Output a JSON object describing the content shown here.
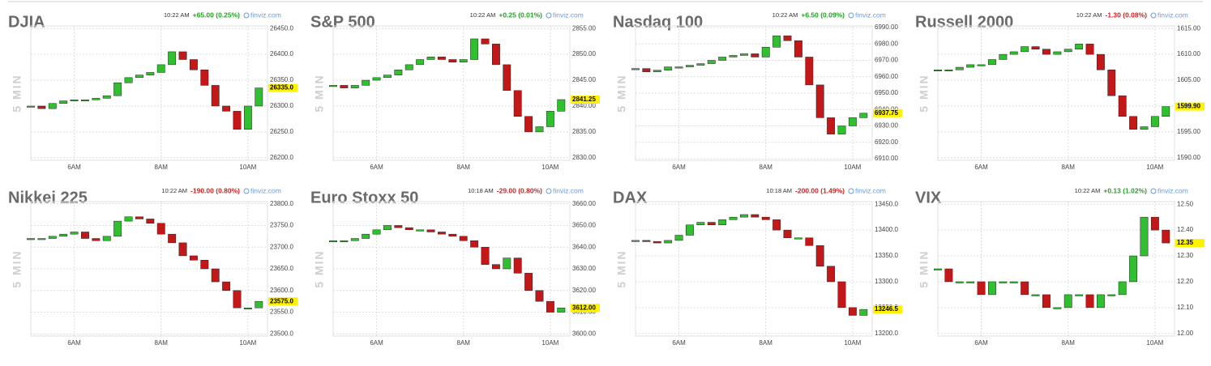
{
  "charts": [
    {
      "type": "candlestick",
      "title": "DJIA",
      "time": "10:22 AM",
      "change": "+65.00 (0.25%)",
      "change_color": "#2a9d2a",
      "source": "finviz.com",
      "ylabel": "5 MIN",
      "x": [
        5,
        5.25,
        5.5,
        5.75,
        6,
        6.25,
        6.5,
        6.75,
        7,
        7.25,
        7.5,
        7.75,
        8,
        8.25,
        8.5,
        8.75,
        9,
        9.25,
        9.5,
        9.75,
        10,
        10.25
      ],
      "values": [
        26300,
        26295,
        26305,
        26310,
        26312,
        26312,
        26315,
        26320,
        26345,
        26355,
        26360,
        26365,
        26380,
        26405,
        26390,
        26370,
        26340,
        26300,
        26290,
        26255,
        26300,
        26335
      ],
      "xlim": [
        5,
        10.45
      ],
      "xticks": [
        {
          "value": 6,
          "label": "6AM"
        },
        {
          "value": 8,
          "label": "8AM"
        },
        {
          "value": 10,
          "label": "10AM"
        }
      ],
      "ylim": [
        26195,
        26455
      ],
      "yticks": [
        {
          "value": 26200,
          "label": "26200.0"
        },
        {
          "value": 26250,
          "label": "26250.0"
        },
        {
          "value": 26300,
          "label": "26300.0"
        },
        {
          "value": 26350,
          "label": "26350.0"
        },
        {
          "value": 26400,
          "label": "26400.0"
        },
        {
          "value": 26450,
          "label": "26450.0"
        }
      ],
      "last_price": {
        "value": 26335,
        "label": "26335.0"
      },
      "grid": true
    },
    {
      "type": "candlestick",
      "title": "S&P 500",
      "time": "10:22 AM",
      "change": "+0.25 (0.01%)",
      "change_color": "#2a9d2a",
      "source": "finviz.com",
      "ylabel": "5 MIN",
      "x": [
        5,
        5.25,
        5.5,
        5.75,
        6,
        6.25,
        6.5,
        6.75,
        7,
        7.25,
        7.5,
        7.75,
        8,
        8.25,
        8.5,
        8.75,
        9,
        9.25,
        9.5,
        9.75,
        10,
        10.25
      ],
      "values": [
        2844,
        2843.5,
        2844,
        2845,
        2845.5,
        2846,
        2847,
        2848,
        2849,
        2849.5,
        2849,
        2848.5,
        2849,
        2853,
        2852,
        2848,
        2843,
        2838,
        2835,
        2836,
        2839,
        2841.25
      ],
      "xlim": [
        5,
        10.45
      ],
      "xticks": [
        {
          "value": 6,
          "label": "6AM"
        },
        {
          "value": 8,
          "label": "8AM"
        },
        {
          "value": 10,
          "label": "10AM"
        }
      ],
      "ylim": [
        2829.5,
        2855.5
      ],
      "yticks": [
        {
          "value": 2830,
          "label": "2830.00"
        },
        {
          "value": 2835,
          "label": "2835.00"
        },
        {
          "value": 2840,
          "label": "2840.00"
        },
        {
          "value": 2845,
          "label": "2845.00"
        },
        {
          "value": 2850,
          "label": "2850.00"
        },
        {
          "value": 2855,
          "label": "2855.00"
        }
      ],
      "last_price": {
        "value": 2841.25,
        "label": "2841.25"
      },
      "grid": true
    },
    {
      "type": "candlestick",
      "title": "Nasdaq 100",
      "time": "10:22 AM",
      "change": "+6.50 (0.09%)",
      "change_color": "#2a9d2a",
      "source": "finviz.com",
      "ylabel": "5 MIN",
      "x": [
        5,
        5.25,
        5.5,
        5.75,
        6,
        6.25,
        6.5,
        6.75,
        7,
        7.25,
        7.5,
        7.75,
        8,
        8.25,
        8.5,
        8.75,
        9,
        9.25,
        9.5,
        9.75,
        10,
        10.25
      ],
      "values": [
        6965,
        6963,
        6964,
        6966,
        6966,
        6967,
        6968,
        6970,
        6972,
        6973,
        6974,
        6972,
        6978,
        6985,
        6982,
        6972,
        6955,
        6935,
        6925,
        6930,
        6935,
        6937.75
      ],
      "xlim": [
        5,
        10.45
      ],
      "xticks": [
        {
          "value": 6,
          "label": "6AM"
        },
        {
          "value": 8,
          "label": "8AM"
        },
        {
          "value": 10,
          "label": "10AM"
        }
      ],
      "ylim": [
        6909,
        6991
      ],
      "yticks": [
        {
          "value": 6910,
          "label": "6910.00"
        },
        {
          "value": 6920,
          "label": "6920.00"
        },
        {
          "value": 6930,
          "label": "6930.00"
        },
        {
          "value": 6940,
          "label": "6940.00"
        },
        {
          "value": 6950,
          "label": "6950.00"
        },
        {
          "value": 6960,
          "label": "6960.00"
        },
        {
          "value": 6970,
          "label": "6970.00"
        },
        {
          "value": 6980,
          "label": "6980.00"
        },
        {
          "value": 6990,
          "label": "6990.00"
        }
      ],
      "last_price": {
        "value": 6937.75,
        "label": "6937.75"
      },
      "grid": true
    },
    {
      "type": "candlestick",
      "title": "Russell 2000",
      "time": "10:22 AM",
      "change": "-1.30 (0.08%)",
      "change_color": "#d62020",
      "source": "finviz.com",
      "ylabel": "5 MIN",
      "x": [
        5,
        5.25,
        5.5,
        5.75,
        6,
        6.25,
        6.5,
        6.75,
        7,
        7.25,
        7.5,
        7.75,
        8,
        8.25,
        8.5,
        8.75,
        9,
        9.25,
        9.5,
        9.75,
        10,
        10.25
      ],
      "values": [
        1607,
        1607,
        1607.5,
        1608,
        1608,
        1609,
        1610,
        1610.5,
        1611.5,
        1611,
        1610,
        1610.5,
        1611,
        1612,
        1610,
        1607,
        1602,
        1598,
        1595.5,
        1596,
        1598,
        1599.9
      ],
      "xlim": [
        5,
        10.45
      ],
      "xticks": [
        {
          "value": 6,
          "label": "6AM"
        },
        {
          "value": 8,
          "label": "8AM"
        },
        {
          "value": 10,
          "label": "10AM"
        }
      ],
      "ylim": [
        1589.5,
        1615.5
      ],
      "yticks": [
        {
          "value": 1590,
          "label": "1590.00"
        },
        {
          "value": 1595,
          "label": "1595.00"
        },
        {
          "value": 1600,
          "label": "1600.00"
        },
        {
          "value": 1605,
          "label": "1605.00"
        },
        {
          "value": 1610,
          "label": "1610.00"
        },
        {
          "value": 1615,
          "label": "1615.00"
        }
      ],
      "last_price": {
        "value": 1599.9,
        "label": "1599.90"
      },
      "grid": true
    },
    {
      "type": "candlestick",
      "title": "Nikkei 225",
      "time": "10:22 AM",
      "change": "-190.00 (0.80%)",
      "change_color": "#d62020",
      "source": "finviz.com",
      "ylabel": "5 MIN",
      "x": [
        5,
        5.25,
        5.5,
        5.75,
        6,
        6.25,
        6.5,
        6.75,
        7,
        7.25,
        7.5,
        7.75,
        8,
        8.25,
        8.5,
        8.75,
        9,
        9.25,
        9.5,
        9.75,
        10,
        10.25
      ],
      "values": [
        23720,
        23720,
        23725,
        23730,
        23735,
        23720,
        23715,
        23725,
        23760,
        23770,
        23765,
        23755,
        23730,
        23710,
        23680,
        23670,
        23650,
        23620,
        23600,
        23560,
        23560,
        23575
      ],
      "xlim": [
        5,
        10.45
      ],
      "xticks": [
        {
          "value": 6,
          "label": "6AM"
        },
        {
          "value": 8,
          "label": "8AM"
        },
        {
          "value": 10,
          "label": "10AM"
        }
      ],
      "ylim": [
        23495,
        23805
      ],
      "yticks": [
        {
          "value": 23500,
          "label": "23500.0"
        },
        {
          "value": 23550,
          "label": "23550.0"
        },
        {
          "value": 23600,
          "label": "23600.0"
        },
        {
          "value": 23650,
          "label": "23650.0"
        },
        {
          "value": 23700,
          "label": "23700.0"
        },
        {
          "value": 23750,
          "label": "23750.0"
        },
        {
          "value": 23800,
          "label": "23800.0"
        }
      ],
      "last_price": {
        "value": 23575,
        "label": "23575.0"
      },
      "grid": true
    },
    {
      "type": "candlestick",
      "title": "Euro Stoxx 50",
      "time": "10:18 AM",
      "change": "-29.00 (0.80%)",
      "change_color": "#d62020",
      "source": "finviz.com",
      "ylabel": "5 MIN",
      "x": [
        5,
        5.25,
        5.5,
        5.75,
        6,
        6.25,
        6.5,
        6.75,
        7,
        7.25,
        7.5,
        7.75,
        8,
        8.25,
        8.5,
        8.75,
        9,
        9.25,
        9.5,
        9.75,
        10,
        10.25
      ],
      "values": [
        3643,
        3643,
        3644,
        3646,
        3648,
        3650,
        3649,
        3648,
        3648,
        3647,
        3646,
        3645,
        3643,
        3640,
        3632,
        3630,
        3635,
        3628,
        3620,
        3615,
        3610,
        3612
      ],
      "xlim": [
        5,
        10.45
      ],
      "xticks": [
        {
          "value": 6,
          "label": "6AM"
        },
        {
          "value": 8,
          "label": "8AM"
        },
        {
          "value": 10,
          "label": "10AM"
        }
      ],
      "ylim": [
        3599,
        3661
      ],
      "yticks": [
        {
          "value": 3600,
          "label": "3600.00"
        },
        {
          "value": 3610,
          "label": "3610.00"
        },
        {
          "value": 3620,
          "label": "3620.00"
        },
        {
          "value": 3630,
          "label": "3630.00"
        },
        {
          "value": 3640,
          "label": "3640.00"
        },
        {
          "value": 3650,
          "label": "3650.00"
        },
        {
          "value": 3660,
          "label": "3660.00"
        }
      ],
      "last_price": {
        "value": 3612,
        "label": "3612.00"
      },
      "grid": true
    },
    {
      "type": "candlestick",
      "title": "DAX",
      "time": "10:18 AM",
      "change": "-200.00 (1.49%)",
      "change_color": "#d62020",
      "source": "finviz.com",
      "ylabel": "5 MIN",
      "x": [
        5,
        5.25,
        5.5,
        5.75,
        6,
        6.25,
        6.5,
        6.75,
        7,
        7.25,
        7.5,
        7.75,
        8,
        8.25,
        8.5,
        8.75,
        9,
        9.25,
        9.5,
        9.75,
        10,
        10.25
      ],
      "values": [
        13380,
        13378,
        13375,
        13380,
        13390,
        13410,
        13415,
        13410,
        13420,
        13425,
        13430,
        13425,
        13420,
        13400,
        13385,
        13385,
        13370,
        13330,
        13300,
        13250,
        13235,
        13246.5
      ],
      "xlim": [
        5,
        10.45
      ],
      "xticks": [
        {
          "value": 6,
          "label": "6AM"
        },
        {
          "value": 8,
          "label": "8AM"
        },
        {
          "value": 10,
          "label": "10AM"
        }
      ],
      "ylim": [
        13195,
        13455
      ],
      "yticks": [
        {
          "value": 13200,
          "label": "13200.0"
        },
        {
          "value": 13250,
          "label": "13250.0"
        },
        {
          "value": 13300,
          "label": "13300.0"
        },
        {
          "value": 13350,
          "label": "13350.0"
        },
        {
          "value": 13400,
          "label": "13400.0"
        },
        {
          "value": 13450,
          "label": "13450.0"
        }
      ],
      "last_price": {
        "value": 13246.5,
        "label": "13246.5"
      },
      "grid": true
    },
    {
      "type": "candlestick",
      "title": "VIX",
      "time": "10:22 AM",
      "change": "+0.13 (1.02%)",
      "change_color": "#2a9d2a",
      "source": "finviz.com",
      "ylabel": "5 MIN",
      "x": [
        5,
        5.25,
        5.5,
        5.75,
        6,
        6.25,
        6.5,
        6.75,
        7,
        7.25,
        7.5,
        7.75,
        8,
        8.25,
        8.5,
        8.75,
        9,
        9.25,
        9.5,
        9.75,
        10,
        10.25
      ],
      "values": [
        12.25,
        12.2,
        12.2,
        12.2,
        12.15,
        12.2,
        12.2,
        12.2,
        12.15,
        12.15,
        12.1,
        12.1,
        12.15,
        12.15,
        12.1,
        12.15,
        12.15,
        12.2,
        12.3,
        12.45,
        12.4,
        12.35
      ],
      "xlim": [
        5,
        10.45
      ],
      "xticks": [
        {
          "value": 6,
          "label": "6AM"
        },
        {
          "value": 8,
          "label": "8AM"
        },
        {
          "value": 10,
          "label": "10AM"
        }
      ],
      "ylim": [
        11.99,
        12.51
      ],
      "yticks": [
        {
          "value": 12,
          "label": "12.00"
        },
        {
          "value": 12.1,
          "label": "12.10"
        },
        {
          "value": 12.2,
          "label": "12.20"
        },
        {
          "value": 12.3,
          "label": "12.30"
        },
        {
          "value": 12.4,
          "label": "12.40"
        },
        {
          "value": 12.5,
          "label": "12.50"
        }
      ],
      "last_price": {
        "value": 12.35,
        "label": "12.35"
      },
      "grid": true
    }
  ]
}
